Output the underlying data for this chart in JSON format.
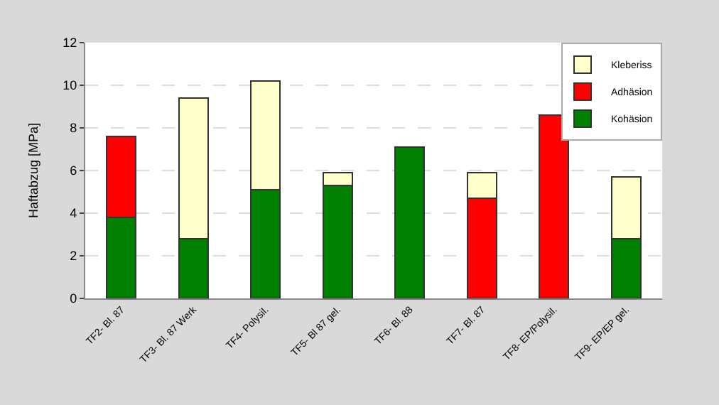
{
  "chart_data": {
    "type": "bar",
    "stacked": true,
    "ylabel": "Haftabzug [MPa]",
    "categories": [
      "TF2- Bl. 87",
      "TF3- Bl. 87 Werk",
      "TF4- Polysil.",
      "TF5- Bl 87 gel.",
      "TF6- Bl. 88",
      "TF7- Bl. 87",
      "TF8- EP/Polysil.",
      "TF9- EP/EP gel."
    ],
    "series": [
      {
        "name": "Kohäsion",
        "color": "#008000",
        "values": [
          3.8,
          2.8,
          5.1,
          5.3,
          7.1,
          null,
          null,
          2.8
        ]
      },
      {
        "name": "Adhäsion",
        "color": "#ff0000",
        "values": [
          3.8,
          null,
          null,
          null,
          null,
          4.7,
          8.6,
          null
        ]
      },
      {
        "name": "Kleberiss",
        "color": "#ffffcc",
        "values": [
          null,
          6.6,
          5.1,
          0.6,
          null,
          1.2,
          null,
          2.9
        ]
      }
    ],
    "ylim": [
      0,
      12
    ],
    "yticks": [
      0,
      2,
      4,
      6,
      8,
      10,
      12
    ],
    "grid": "y",
    "legend": "top right"
  }
}
